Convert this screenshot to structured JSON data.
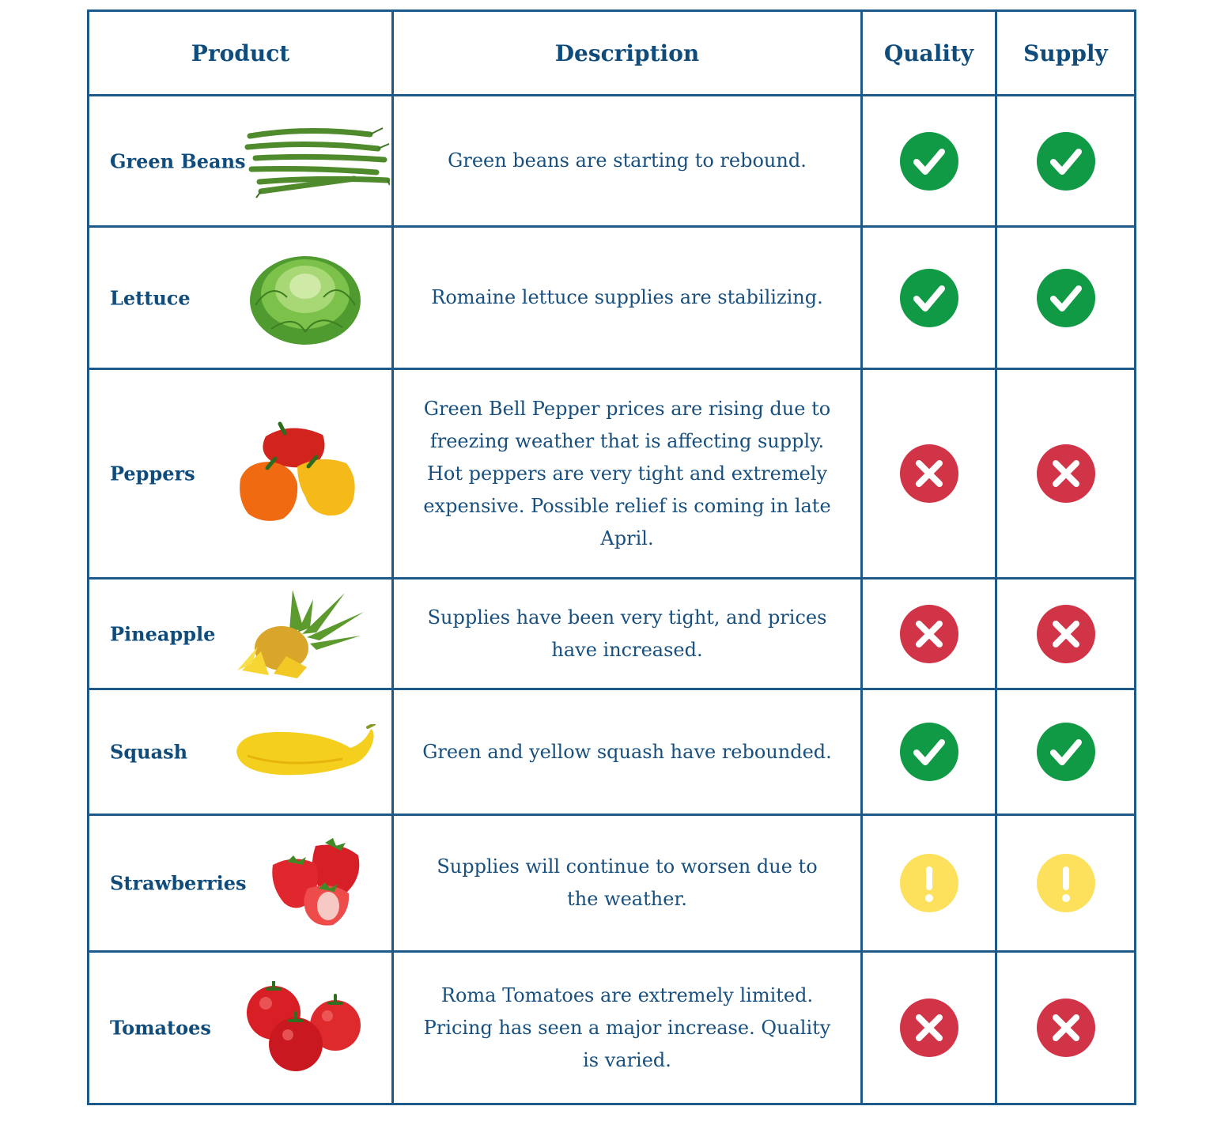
{
  "header": {
    "product": "Product",
    "description": "Description",
    "quality": "Quality",
    "supply": "Supply"
  },
  "colors": {
    "good": "#119a45",
    "bad": "#d23447",
    "warn": "#fde15c",
    "border": "#1d5a8a",
    "text": "#0f4c7c"
  },
  "rows": [
    {
      "name": "Green Beans",
      "description": "Green beans are starting to rebound.",
      "quality": "check-icon",
      "supply": "check-icon"
    },
    {
      "name": "Lettuce",
      "description": "Romaine lettuce supplies are stabilizing.",
      "quality": "check-icon",
      "supply": "check-icon"
    },
    {
      "name": "Peppers",
      "description": "Green Bell Pepper prices are rising due to freezing weather that is affecting supply. Hot peppers are very tight and extremely expensive. Possible relief is coming in late April.",
      "quality": "x-icon",
      "supply": "x-icon"
    },
    {
      "name": "Pineapple",
      "description": "Supplies have been very tight, and prices have increased.",
      "quality": "x-icon",
      "supply": "x-icon"
    },
    {
      "name": "Squash",
      "description": "Green and yellow squash have rebounded.",
      "quality": "check-icon",
      "supply": "check-icon"
    },
    {
      "name": "Strawberries",
      "description": "Supplies will continue to worsen due to the weather.",
      "quality": "exclamation-icon",
      "supply": "exclamation-icon"
    },
    {
      "name": "Tomatoes",
      "description": "Roma Tomatoes are extremely limited. Pricing has seen a major increase. Quality is varied.",
      "quality": "x-icon",
      "supply": "x-icon"
    }
  ]
}
